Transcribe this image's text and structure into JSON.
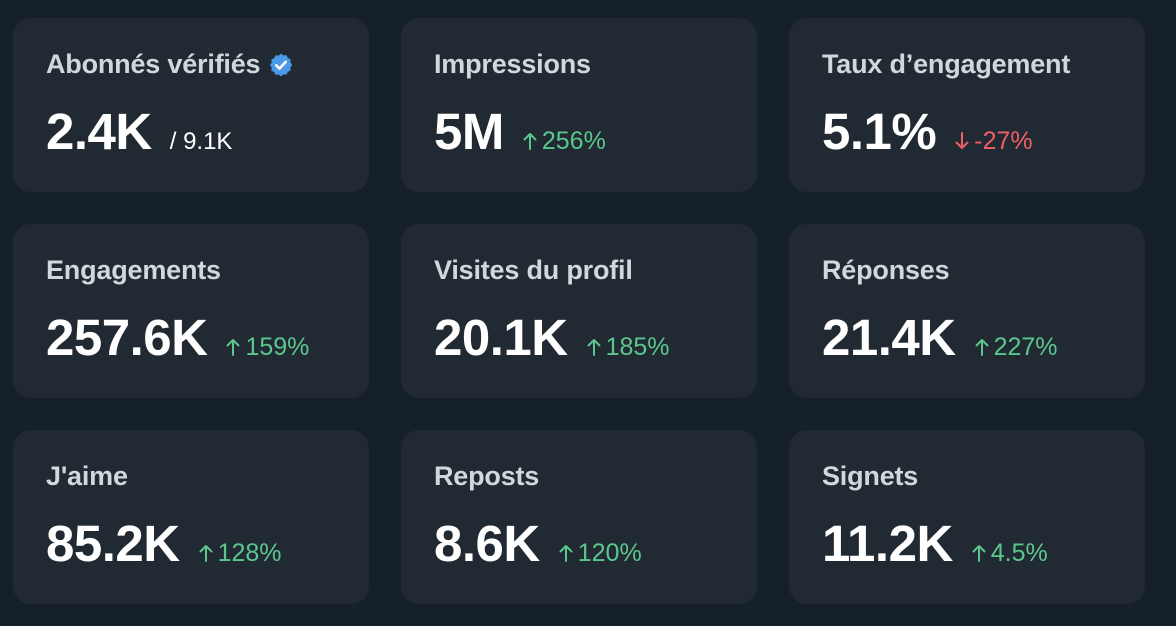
{
  "colors": {
    "background": "#16202b",
    "card": "#212932",
    "positive": "#5bc78e",
    "negative": "#ef5f68",
    "verified_badge": "#4a99e9"
  },
  "metrics": [
    {
      "label": "Abonnés vérifiés",
      "value": "2.4K",
      "total": "/ 9.1K",
      "icon": "verified-badge-icon"
    },
    {
      "label": "Impressions",
      "value": "5M",
      "change": "256%",
      "direction": "up"
    },
    {
      "label": "Taux d’engagement",
      "value": "5.1%",
      "change": "-27%",
      "direction": "down"
    },
    {
      "label": "Engagements",
      "value": "257.6K",
      "change": "159%",
      "direction": "up"
    },
    {
      "label": "Visites du profil",
      "value": "20.1K",
      "change": "185%",
      "direction": "up"
    },
    {
      "label": "Réponses",
      "value": "21.4K",
      "change": "227%",
      "direction": "up"
    },
    {
      "label": "J'aime",
      "value": "85.2K",
      "change": "128%",
      "direction": "up"
    },
    {
      "label": "Reposts",
      "value": "8.6K",
      "change": "120%",
      "direction": "up"
    },
    {
      "label": "Signets",
      "value": "11.2K",
      "change": "4.5%",
      "direction": "up"
    }
  ]
}
